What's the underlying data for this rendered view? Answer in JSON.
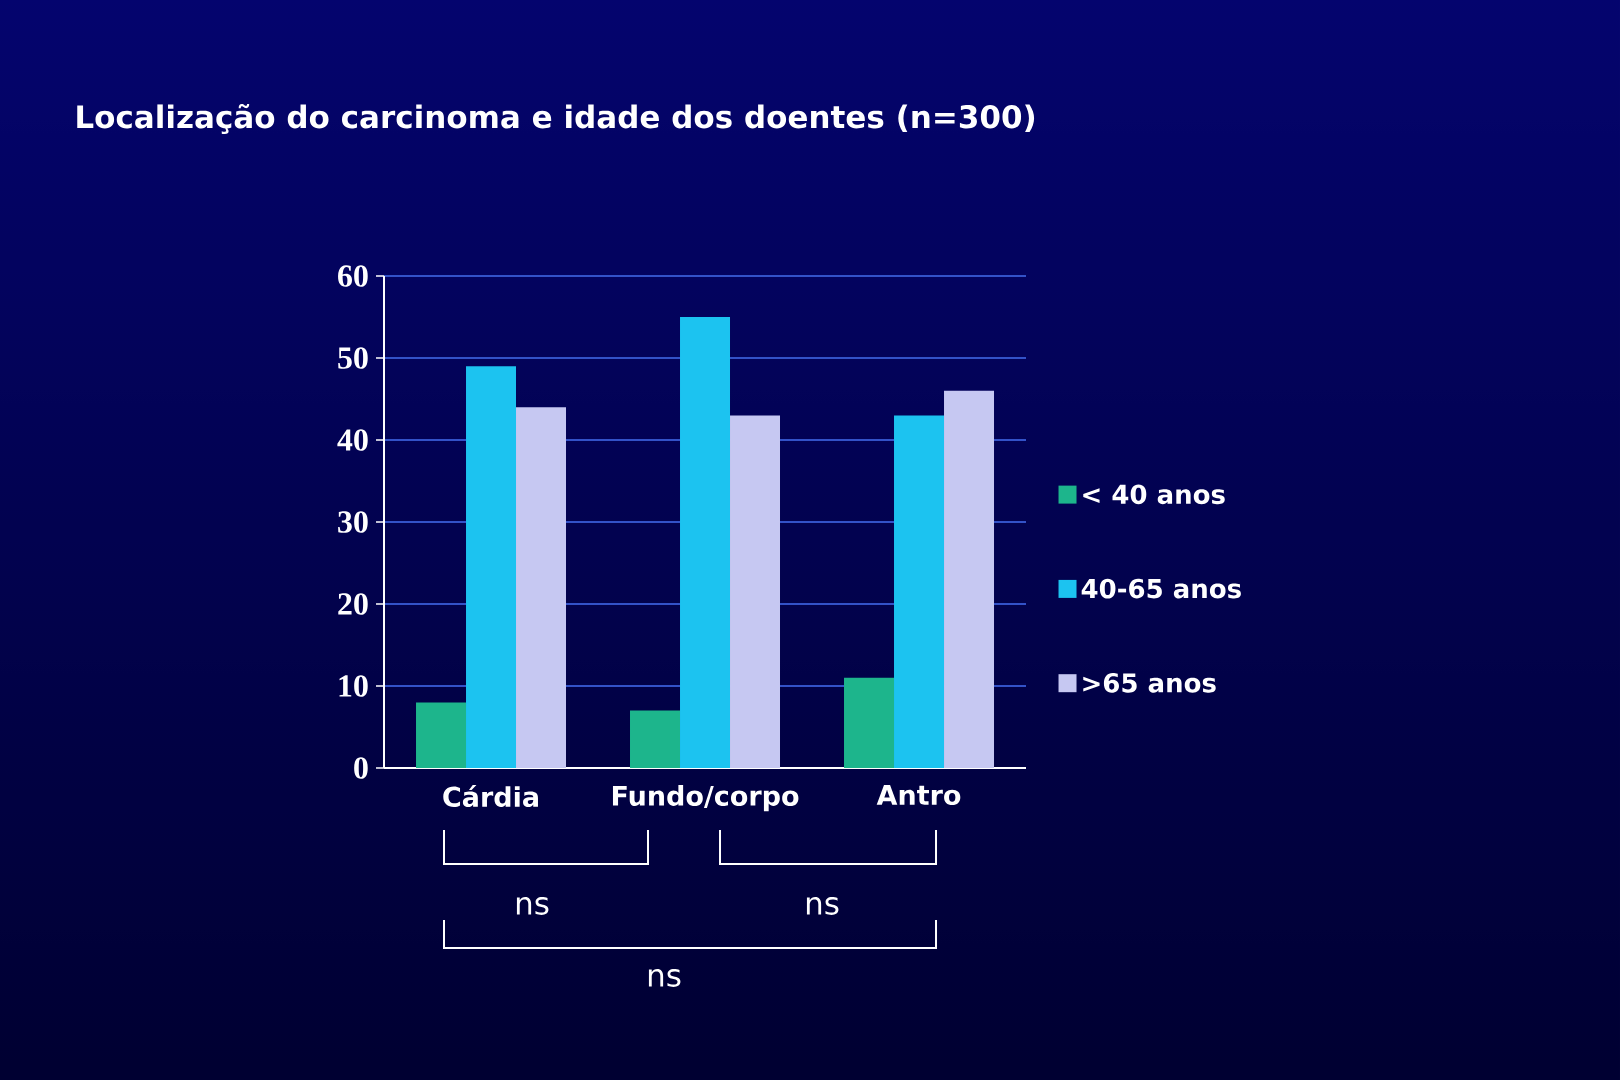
{
  "chart_data": {
    "type": "bar",
    "title": "Localização do carcinoma e idade dos doentes (n=300)",
    "categories": [
      "Cárdia",
      "Fundo/corpo",
      "Antro"
    ],
    "series": [
      {
        "name": "< 40 anos",
        "color": "#1db58c",
        "values": [
          8,
          7,
          11
        ]
      },
      {
        "name": "40-65 anos",
        "color": "#1cc3f0",
        "values": [
          49,
          55,
          43
        ]
      },
      {
        "name": ">65 anos",
        "color": "#c6c8f2",
        "values": [
          44,
          43,
          46
        ]
      }
    ],
    "ylim": [
      0,
      60
    ],
    "yticks": [
      0,
      10,
      20,
      30,
      40,
      50,
      60
    ],
    "grid": "y",
    "legend": "right",
    "annotations": [
      "ns",
      "ns",
      "ns"
    ]
  }
}
